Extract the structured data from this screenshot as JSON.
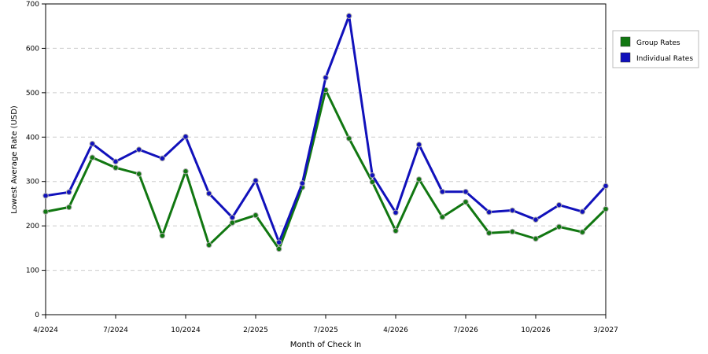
{
  "chart_data": {
    "type": "line",
    "title": "",
    "xlabel": "Month of Check In",
    "ylabel": "Lowest Average Rate (USD)",
    "ylim": [
      0,
      700
    ],
    "yticks": [
      0,
      100,
      200,
      300,
      400,
      500,
      600,
      700
    ],
    "x_tick_labels": [
      "4/2024",
      "7/2024",
      "10/2024",
      "2/2025",
      "7/2025",
      "4/2026",
      "7/2026",
      "10/2026",
      "3/2027"
    ],
    "x_tick_indices": [
      0,
      3,
      6,
      9,
      12,
      15,
      18,
      21,
      24
    ],
    "grid": "horizontal-dashed",
    "legend_position": "top-right",
    "series": [
      {
        "name": "Group Rates",
        "color": "#117711",
        "values": [
          232,
          242,
          354,
          331,
          317,
          178,
          323,
          157,
          207,
          224,
          148,
          287,
          506,
          397,
          299,
          189,
          305,
          220,
          254,
          184,
          187,
          171,
          198,
          186,
          238
        ]
      },
      {
        "name": "Individual Rates",
        "color": "#1111bb",
        "values": [
          268,
          276,
          385,
          345,
          372,
          352,
          401,
          273,
          219,
          302,
          163,
          296,
          534,
          673,
          314,
          230,
          383,
          277,
          277,
          231,
          235,
          214,
          247,
          232,
          290
        ]
      }
    ]
  }
}
